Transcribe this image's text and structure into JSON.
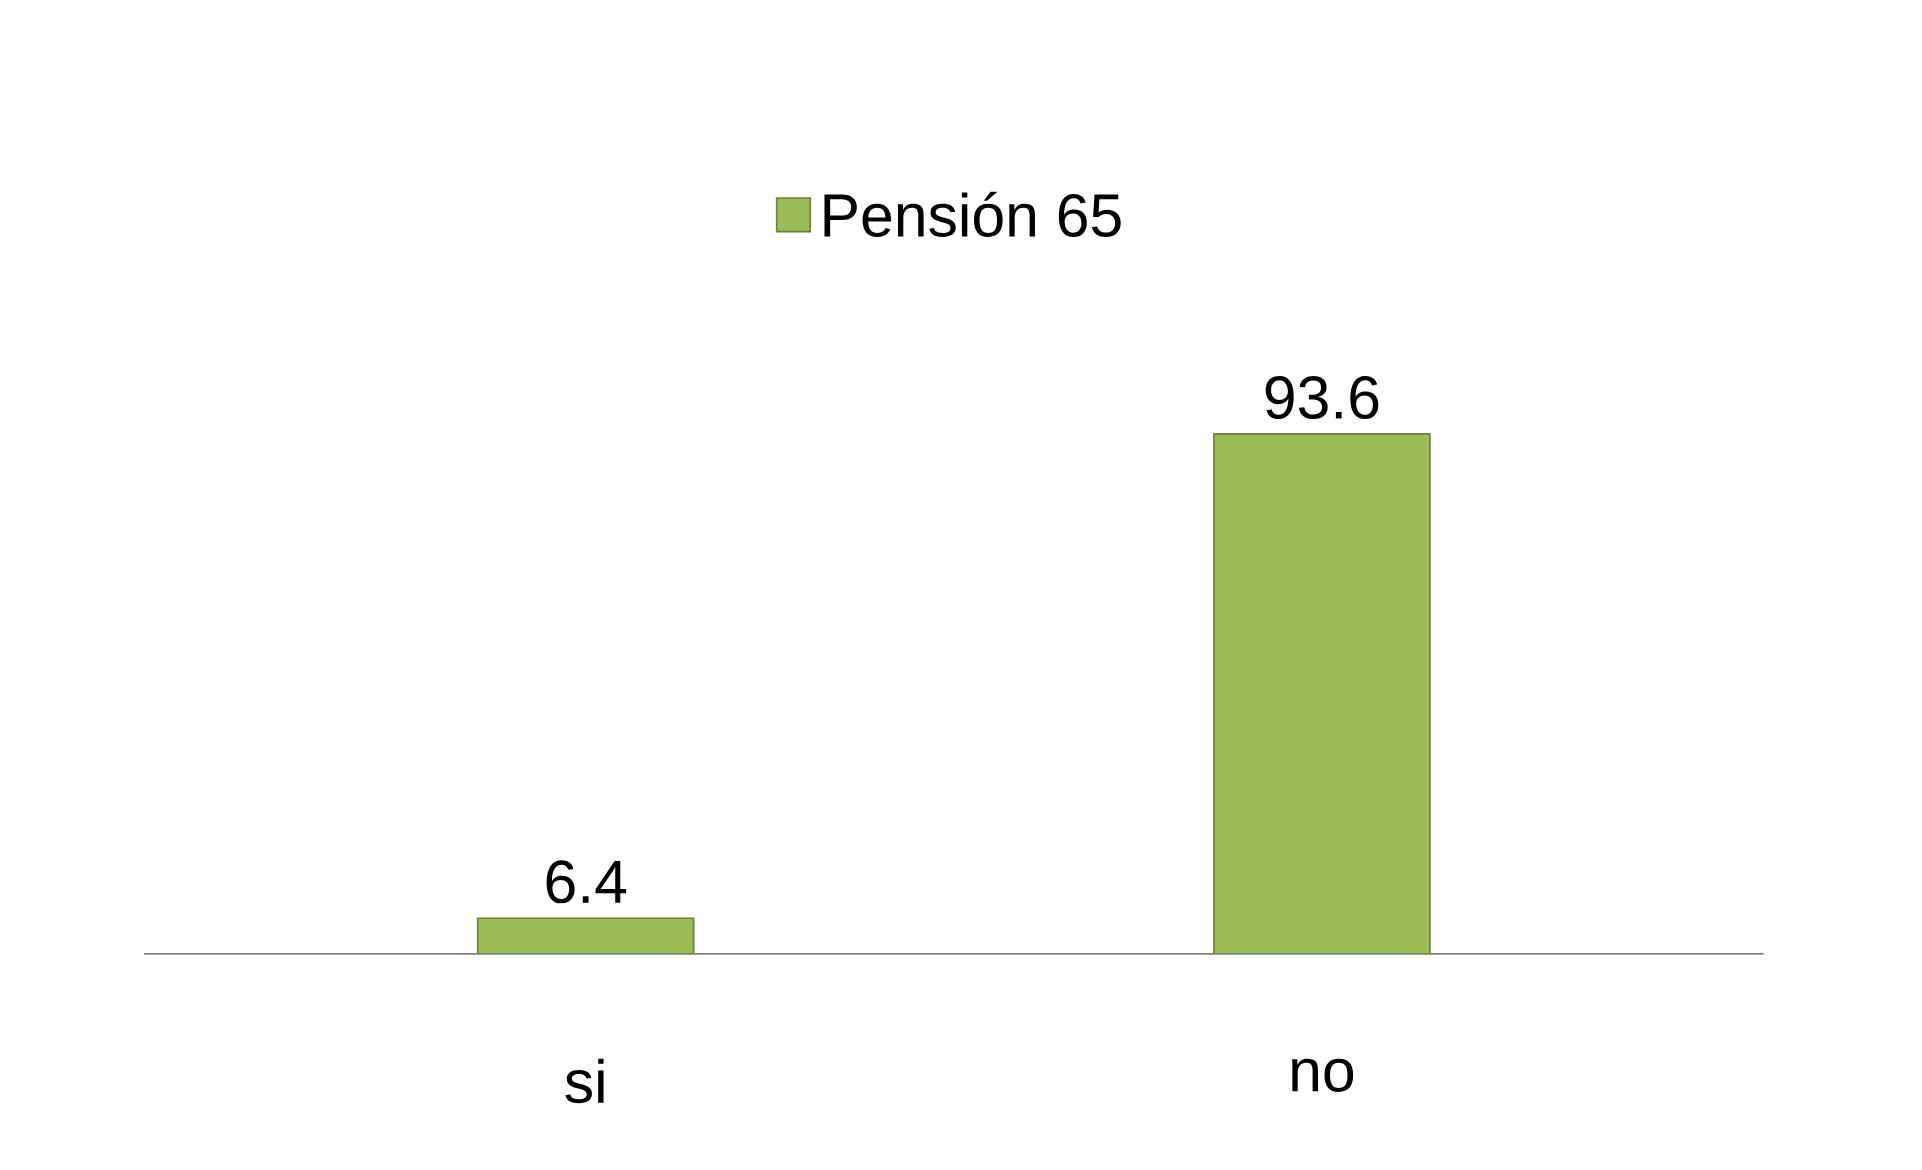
{
  "chart_data": {
    "type": "bar",
    "categories": [
      "si",
      "no"
    ],
    "series": [
      {
        "name": "Pensión 65",
        "color": "#9bbb59",
        "values": [
          6.4,
          93.6
        ]
      }
    ],
    "data_labels": true,
    "legend": "top"
  }
}
